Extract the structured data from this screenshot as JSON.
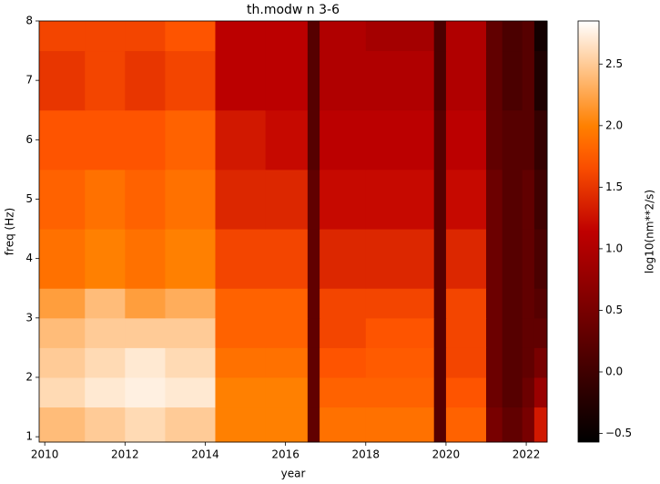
{
  "chart_data": {
    "type": "heatmap",
    "title": "th.modw n 3-6",
    "x_label": "year",
    "y_label": "freq (Hz)",
    "colorbar_label": "log10(nm**2/s)",
    "colormap": "gist_heat",
    "x_edges": [
      2009.86,
      2011,
      2012,
      2013,
      2014.25,
      2015.5,
      2016.55,
      2016.85,
      2018,
      2019.7,
      2020.0,
      2021.0,
      2021.4,
      2021.9,
      2022.2,
      2022.52
    ],
    "y_edges": [
      0.91,
      1.5,
      2.0,
      2.5,
      3.0,
      3.5,
      4.5,
      5.5,
      6.5,
      7.5,
      8
    ],
    "z": [
      [
        2.4,
        2.5,
        2.6,
        2.5,
        2.0,
        2.0,
        0.3,
        1.9,
        1.9,
        0.2,
        1.8,
        0.5,
        0.3,
        0.5,
        1.3
      ],
      [
        2.6,
        2.7,
        2.75,
        2.7,
        2.0,
        2.0,
        0.3,
        1.8,
        1.8,
        0.2,
        1.7,
        0.4,
        0.2,
        0.4,
        0.8
      ],
      [
        2.5,
        2.6,
        2.7,
        2.6,
        1.9,
        1.9,
        0.3,
        1.7,
        1.75,
        0.2,
        1.6,
        0.4,
        0.2,
        0.3,
        0.5
      ],
      [
        2.4,
        2.5,
        2.5,
        2.5,
        1.8,
        1.8,
        0.3,
        1.6,
        1.7,
        0.2,
        1.6,
        0.4,
        0.2,
        0.3,
        0.3
      ],
      [
        2.2,
        2.4,
        2.2,
        2.3,
        1.8,
        1.8,
        0.3,
        1.6,
        1.6,
        0.2,
        1.6,
        0.4,
        0.2,
        0.3,
        0.2
      ],
      [
        1.9,
        2.0,
        1.9,
        2.0,
        1.6,
        1.6,
        0.3,
        1.4,
        1.4,
        0.2,
        1.4,
        0.4,
        0.2,
        0.3,
        0.1
      ],
      [
        1.8,
        1.9,
        1.8,
        1.9,
        1.4,
        1.4,
        0.3,
        1.2,
        1.2,
        0.2,
        1.2,
        0.4,
        0.2,
        0.3,
        0.0
      ],
      [
        1.7,
        1.7,
        1.7,
        1.8,
        1.3,
        1.2,
        0.2,
        1.1,
        1.1,
        0.2,
        1.1,
        0.3,
        0.2,
        0.2,
        -0.1
      ],
      [
        1.5,
        1.6,
        1.5,
        1.6,
        1.1,
        1.1,
        0.2,
        1.0,
        1.0,
        0.1,
        1.0,
        0.3,
        0.1,
        0.2,
        -0.3
      ],
      [
        1.6,
        1.6,
        1.6,
        1.7,
        1.1,
        1.1,
        0.2,
        1.0,
        0.9,
        0.1,
        1.0,
        0.3,
        0.1,
        0.2,
        -0.4
      ]
    ],
    "xlim": [
      2009.86,
      2022.52
    ],
    "xticks": [
      2010,
      2012,
      2014,
      2016,
      2018,
      2020,
      2022
    ],
    "ylim": [
      0.91,
      8
    ],
    "yticks": [
      1,
      2,
      3,
      4,
      5,
      6,
      7,
      8
    ],
    "clim": [
      -0.57,
      2.85
    ],
    "cticks": [
      {
        "value": -0.5,
        "label": "−0.5"
      },
      {
        "value": 0,
        "label": "0.0"
      },
      0.5,
      {
        "value": 1,
        "label": "1.0"
      },
      1.5,
      {
        "value": 2,
        "label": "2.0"
      },
      2.5
    ]
  }
}
